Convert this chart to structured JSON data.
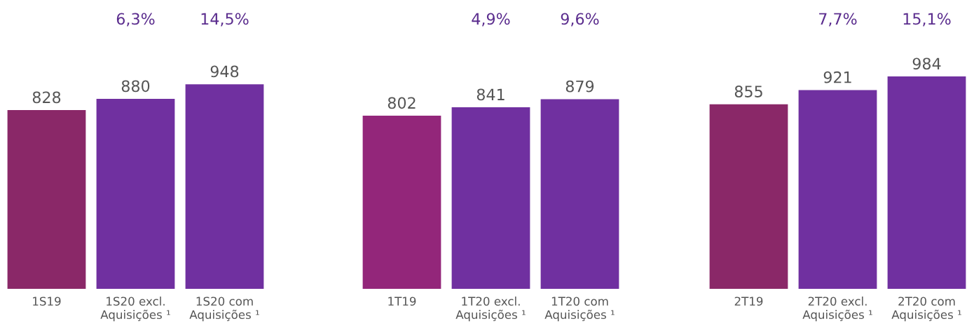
{
  "chart_data": [
    {
      "type": "bar",
      "categories": [
        "1S19",
        "1S20 excl.\nAquisições ¹",
        "1S20 com\nAquisições ¹"
      ],
      "values": [
        828,
        880,
        948
      ],
      "colors": [
        "#8a2868",
        "#7030a0",
        "#7030a0"
      ],
      "data_labels": true,
      "annotations": [
        "6,3%",
        "14,5%"
      ]
    },
    {
      "type": "bar",
      "categories": [
        "1T19",
        "1T20 excl.\nAquisições ¹",
        "1T20 com\nAquisições ¹"
      ],
      "values": [
        802,
        841,
        879
      ],
      "colors": [
        "#93267a",
        "#7030a0",
        "#7030a0"
      ],
      "data_labels": true,
      "annotations": [
        "4,9%",
        "9,6%"
      ]
    },
    {
      "type": "bar",
      "categories": [
        "2T19",
        "2T20 excl.\nAquisições ¹",
        "2T20 com\nAquisições ¹"
      ],
      "values": [
        855,
        921,
        984
      ],
      "colors": [
        "#8a2868",
        "#7030a0",
        "#7030a0"
      ],
      "data_labels": true,
      "annotations": [
        "7,7%",
        "15,1%"
      ]
    }
  ]
}
